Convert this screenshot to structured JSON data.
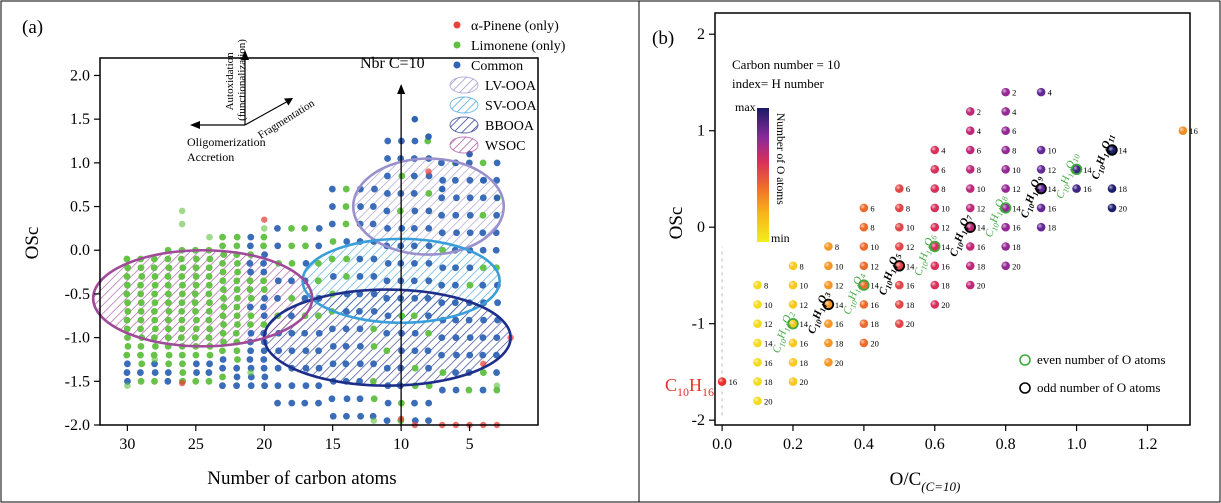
{
  "chart_data": [
    {
      "type": "scatter",
      "panel_label": "(a)",
      "xlabel": "Number of carbon atoms",
      "ylabel": "OSc",
      "xlim": [
        32,
        0
      ],
      "ylim": [
        -2.0,
        2.2
      ],
      "x_reversed": true,
      "x_ticks": [
        30,
        25,
        20,
        15,
        10,
        5
      ],
      "x_tick_labels": [
        "30",
        "25",
        "20",
        "15",
        "10",
        "5"
      ],
      "y_ticks": [
        -2.0,
        -1.5,
        -1.0,
        -0.5,
        0.0,
        0.5,
        1.0,
        1.5,
        2.0
      ],
      "y_tick_labels": [
        "-2.0",
        "-1.5",
        "-1.0",
        "-0.5",
        "0.0",
        "0.5",
        "1.0",
        "1.5",
        "2.0"
      ],
      "grid": false,
      "legend_position": "top-right",
      "series": [
        {
          "name": "α-Pinene (only)",
          "color": "#e8423c"
        },
        {
          "name": "Limonene (only)",
          "color": "#5fbf3f"
        },
        {
          "name": "Common",
          "color": "#2f64b4"
        }
      ],
      "regions": [
        {
          "name": "LV-OOA",
          "color": "#9a90cc",
          "center": [
            8,
            0.5
          ],
          "radii": [
            5.5,
            0.55
          ]
        },
        {
          "name": "SV-OOA",
          "color": "#3a9fd8",
          "center": [
            10,
            -0.35
          ],
          "radii": [
            7.2,
            0.48
          ]
        },
        {
          "name": "BBOOA",
          "color": "#1e2f8a",
          "center": [
            11,
            -1.0
          ],
          "radii": [
            9,
            0.55
          ]
        },
        {
          "name": "WSOC",
          "color": "#a04a9a",
          "center": [
            24.5,
            -0.55
          ],
          "radii": [
            8,
            0.55
          ]
        }
      ],
      "annotations": {
        "vline_label": "Nbr C=10",
        "vline_x": 10,
        "arrow_up_label": "Autoxidation (functionalization)",
        "arrow_right_label": "Fragmentation",
        "arrow_left_label": "Oligomerization Accretion"
      }
    },
    {
      "type": "scatter",
      "panel_label": "(b)",
      "xlabel_main": "O/C",
      "xlabel_sub": "(C=10)",
      "ylabel": "OSc",
      "xlim": [
        -0.02,
        1.32
      ],
      "ylim": [
        -2.05,
        2.22
      ],
      "x_ticks": [
        0.0,
        0.2,
        0.4,
        0.6,
        0.8,
        1.0,
        1.2
      ],
      "x_tick_labels": [
        "0.0",
        "0.2",
        "0.4",
        "0.6",
        "0.8",
        "1.0",
        "1.2"
      ],
      "y_ticks": [
        -2,
        -1,
        0,
        1,
        2
      ],
      "y_tick_labels": [
        "-2",
        "-1",
        "0",
        "1",
        "2"
      ],
      "info_line1": "Carbon number = 10",
      "info_line2": "index= H number",
      "colorbar_max": "max",
      "colorbar_min": "min",
      "colorbar_title": "Number of O atoms",
      "legend": [
        {
          "name": "even number of O atoms",
          "color": "#3fa83f"
        },
        {
          "name": "odd number of O atoms",
          "color": "#000000"
        }
      ],
      "base_label": "C10H16",
      "points": [
        {
          "oc": 0.0,
          "h": [
            16
          ]
        },
        {
          "oc": 0.1,
          "h": [
            8,
            10,
            12,
            14,
            16,
            18,
            20
          ]
        },
        {
          "oc": 0.2,
          "h": [
            8,
            10,
            12,
            14,
            16,
            18,
            20
          ]
        },
        {
          "oc": 0.3,
          "h": [
            8,
            10,
            12,
            14,
            16,
            18,
            20
          ]
        },
        {
          "oc": 0.4,
          "h": [
            6,
            8,
            10,
            12,
            14,
            16,
            18,
            20
          ]
        },
        {
          "oc": 0.5,
          "h": [
            6,
            8,
            10,
            12,
            14,
            16,
            18,
            20
          ]
        },
        {
          "oc": 0.6,
          "h": [
            4,
            6,
            8,
            10,
            12,
            14,
            16,
            18,
            20
          ]
        },
        {
          "oc": 0.7,
          "h": [
            2,
            4,
            6,
            8,
            10,
            12,
            14,
            16,
            18,
            20
          ]
        },
        {
          "oc": 0.8,
          "h": [
            2,
            4,
            6,
            8,
            10,
            12,
            14,
            16,
            18,
            20
          ]
        },
        {
          "oc": 0.9,
          "h": [
            4,
            10,
            12,
            14,
            16,
            18
          ]
        },
        {
          "oc": 1.0,
          "h": [
            14,
            16
          ]
        },
        {
          "oc": 1.1,
          "h": [
            14,
            18,
            20
          ]
        },
        {
          "oc": 1.3,
          "h": [
            16
          ]
        }
      ],
      "highlight": [
        {
          "oc": 0.2,
          "osc": -1.0,
          "kind": "even"
        },
        {
          "oc": 0.3,
          "osc": -0.8,
          "kind": "odd"
        },
        {
          "oc": 0.4,
          "osc": -0.6,
          "kind": "even"
        },
        {
          "oc": 0.5,
          "osc": -0.4,
          "kind": "odd"
        },
        {
          "oc": 0.6,
          "osc": -0.2,
          "kind": "even"
        },
        {
          "oc": 0.7,
          "osc": 0.0,
          "kind": "odd"
        },
        {
          "oc": 0.8,
          "osc": 0.2,
          "kind": "even"
        },
        {
          "oc": 0.9,
          "osc": 0.4,
          "kind": "odd"
        },
        {
          "oc": 1.0,
          "osc": 0.6,
          "kind": "even"
        },
        {
          "oc": 1.1,
          "osc": 0.8,
          "kind": "odd"
        }
      ],
      "formula_labels": [
        {
          "h": "14",
          "o": "2",
          "kind": "even",
          "oc": 0.2,
          "osc": -1.0
        },
        {
          "h": "14",
          "o": "3",
          "kind": "odd",
          "oc": 0.3,
          "osc": -0.8
        },
        {
          "h": "14",
          "o": "4",
          "kind": "even",
          "oc": 0.4,
          "osc": -0.6
        },
        {
          "h": "14",
          "o": "5",
          "kind": "odd",
          "oc": 0.5,
          "osc": -0.4
        },
        {
          "h": "14",
          "o": "6",
          "kind": "even",
          "oc": 0.6,
          "osc": -0.2
        },
        {
          "h": "14",
          "o": "7",
          "kind": "odd",
          "oc": 0.7,
          "osc": 0.0
        },
        {
          "h": "14",
          "o": "8",
          "kind": "even",
          "oc": 0.8,
          "osc": 0.2
        },
        {
          "h": "14",
          "o": "9",
          "kind": "odd",
          "oc": 0.9,
          "osc": 0.4
        },
        {
          "h": "14",
          "o": "10",
          "kind": "even",
          "oc": 1.0,
          "osc": 0.6
        },
        {
          "h": "14",
          "o": "11",
          "kind": "odd",
          "oc": 1.1,
          "osc": 0.8
        }
      ]
    }
  ]
}
